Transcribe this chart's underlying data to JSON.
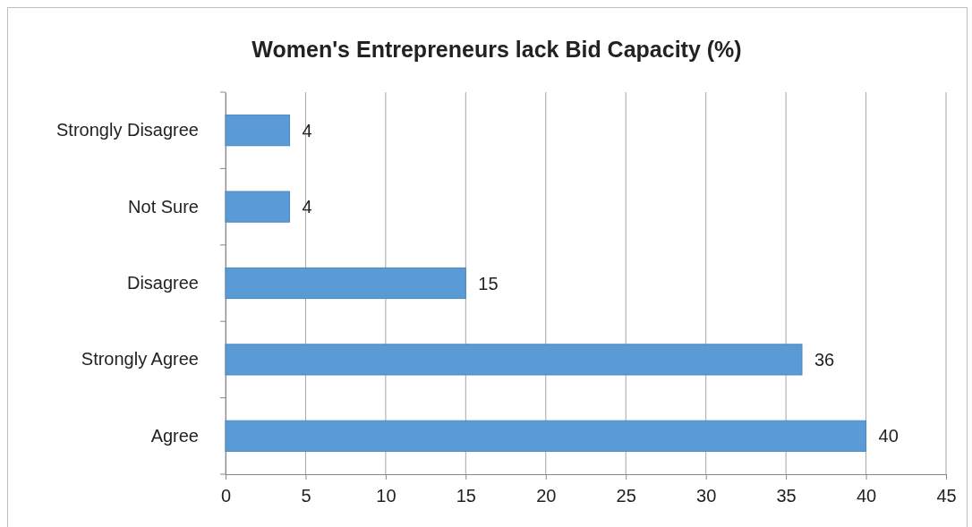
{
  "chart_data": {
    "type": "bar",
    "orientation": "horizontal",
    "title": "Women's Entrepreneurs lack Bid Capacity (%)",
    "categories": [
      "Strongly Disagree",
      "Not Sure",
      "Disagree",
      "Strongly Agree",
      "Agree"
    ],
    "values": [
      4,
      4,
      15,
      36,
      40
    ],
    "color": "#5b9bd5",
    "xlim": [
      0,
      45
    ],
    "xticks": [
      0,
      5,
      10,
      15,
      20,
      25,
      30,
      35,
      40,
      45
    ],
    "grid": "x",
    "data_labels": true
  }
}
